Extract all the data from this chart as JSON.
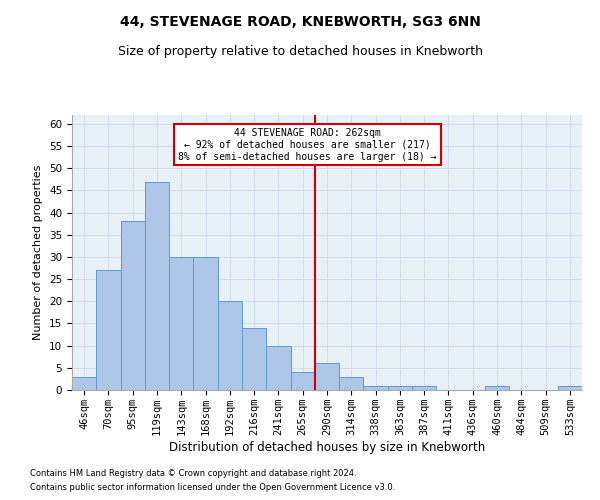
{
  "title": "44, STEVENAGE ROAD, KNEBWORTH, SG3 6NN",
  "subtitle": "Size of property relative to detached houses in Knebworth",
  "xlabel": "Distribution of detached houses by size in Knebworth",
  "ylabel": "Number of detached properties",
  "bar_labels": [
    "46sqm",
    "70sqm",
    "95sqm",
    "119sqm",
    "143sqm",
    "168sqm",
    "192sqm",
    "216sqm",
    "241sqm",
    "265sqm",
    "290sqm",
    "314sqm",
    "338sqm",
    "363sqm",
    "387sqm",
    "411sqm",
    "436sqm",
    "460sqm",
    "484sqm",
    "509sqm",
    "533sqm"
  ],
  "bar_values": [
    3,
    27,
    38,
    47,
    30,
    30,
    20,
    14,
    10,
    4,
    6,
    3,
    1,
    1,
    1,
    0,
    0,
    1,
    0,
    0,
    1
  ],
  "bar_color": "#aec6e8",
  "bar_edge_color": "#5b9bd5",
  "property_line_x": 9.5,
  "annotation_title": "44 STEVENAGE ROAD: 262sqm",
  "annotation_line1": "← 92% of detached houses are smaller (217)",
  "annotation_line2": "8% of semi-detached houses are larger (18) →",
  "annotation_box_color": "#ffffff",
  "annotation_box_edge": "#cc0000",
  "line_color": "#cc0000",
  "ylim": [
    0,
    62
  ],
  "yticks": [
    0,
    5,
    10,
    15,
    20,
    25,
    30,
    35,
    40,
    45,
    50,
    55,
    60
  ],
  "grid_color": "#d0d8e8",
  "bg_color": "#e8f0f8",
  "footnote1": "Contains HM Land Registry data © Crown copyright and database right 2024.",
  "footnote2": "Contains public sector information licensed under the Open Government Licence v3.0.",
  "title_fontsize": 10,
  "subtitle_fontsize": 9,
  "ylabel_fontsize": 8,
  "xlabel_fontsize": 8.5,
  "tick_fontsize": 7.5,
  "footnote_fontsize": 6
}
